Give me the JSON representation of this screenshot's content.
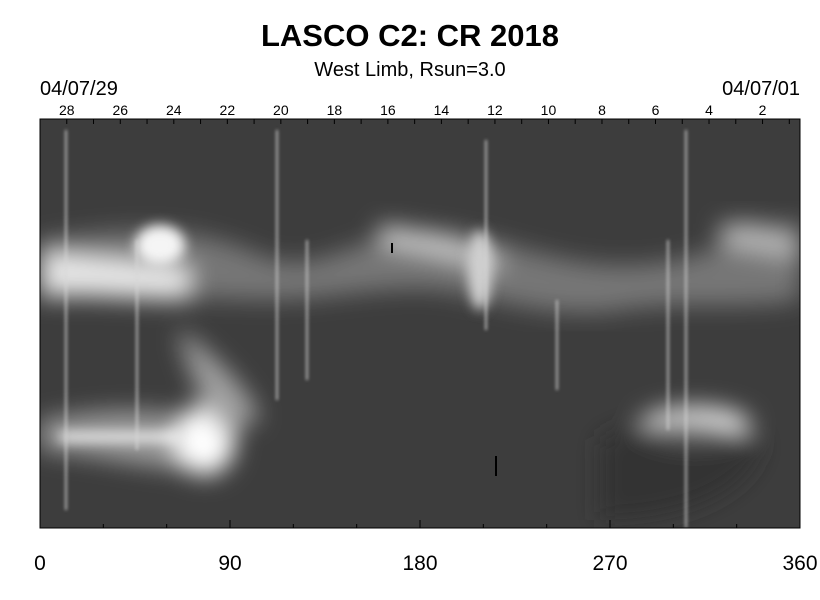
{
  "title": "LASCO C2: CR 2018",
  "subtitle": "West Limb, Rsun=3.0",
  "date_start": "04/07/29",
  "date_end": "04/07/01",
  "x_axis": {
    "ticks": [
      "0",
      "90",
      "180",
      "270",
      "360"
    ],
    "tick_values": [
      0,
      90,
      180,
      270,
      360
    ],
    "range": [
      0,
      360
    ]
  },
  "day_axis": {
    "labels": [
      "28",
      "26",
      "24",
      "22",
      "20",
      "18",
      "16",
      "14",
      "12",
      "10",
      "8",
      "6",
      "4",
      "2"
    ]
  }
}
